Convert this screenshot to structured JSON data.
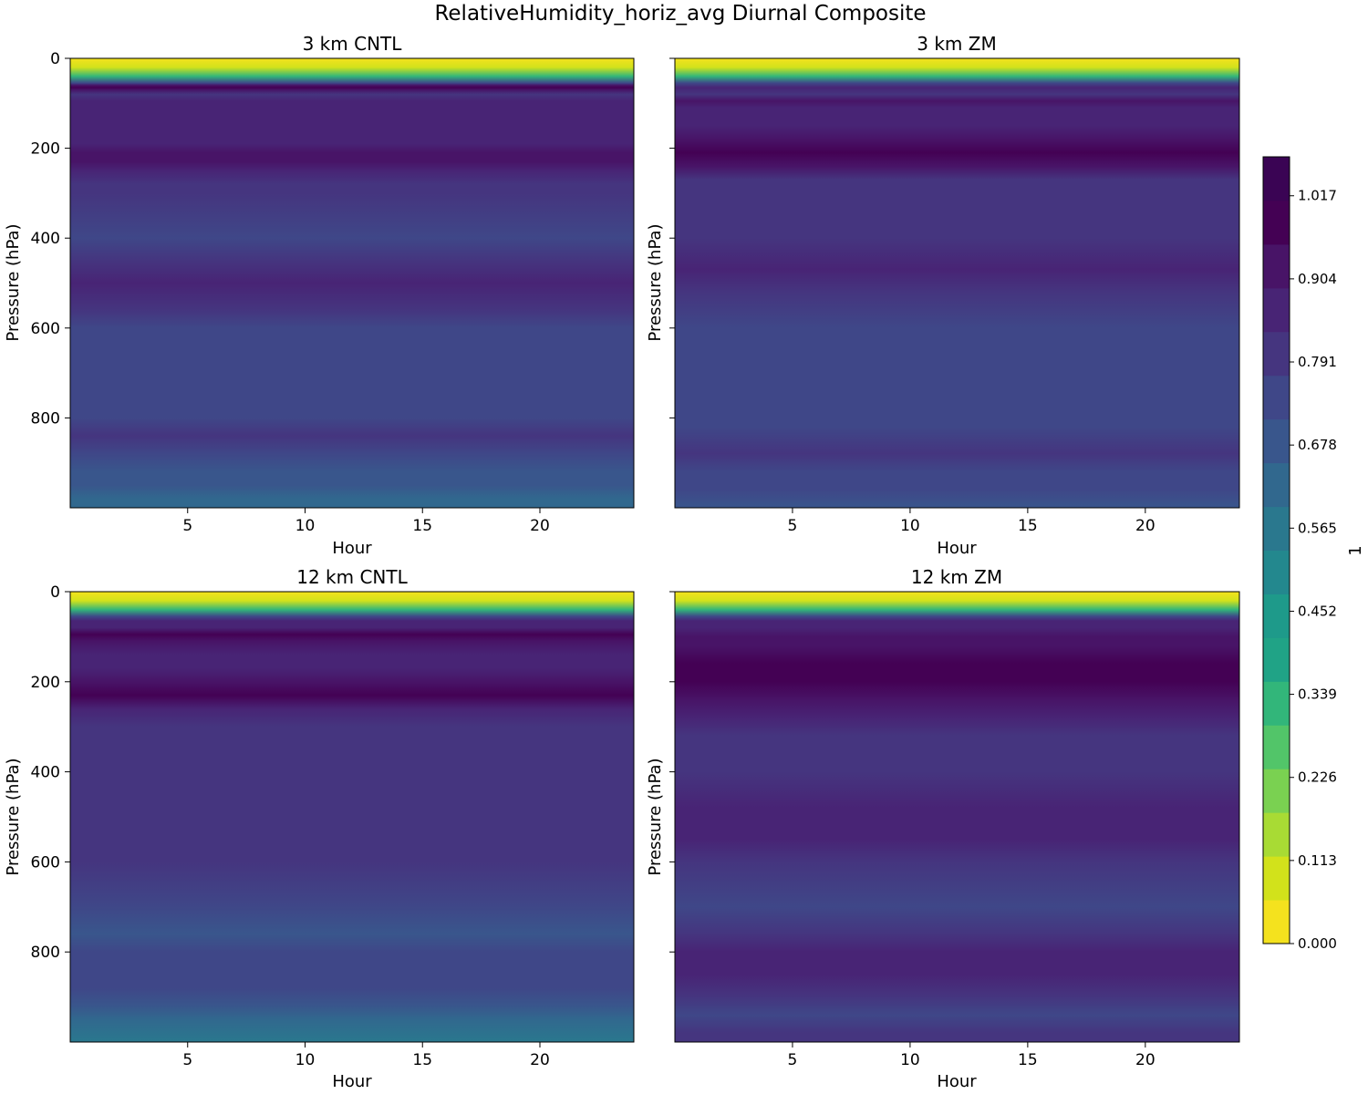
{
  "chart_data": {
    "type": "filled-contour",
    "title": "RelativeHumidity_horiz_avg Diurnal Composite",
    "colormap": "viridis_r",
    "colorbar": {
      "label": "1",
      "range": [
        0,
        1.07
      ],
      "levels": 19,
      "tick_values": [
        0.0,
        0.113,
        0.226,
        0.339,
        0.452,
        0.565,
        0.678,
        0.791,
        0.904,
        1.017
      ],
      "tick_labels": [
        "0.000",
        "0.113",
        "0.226",
        "0.339",
        "0.452",
        "0.565",
        "0.678",
        "0.791",
        "0.904",
        "1.017"
      ],
      "colors": [
        "#f4e21e",
        "#d2e21b",
        "#a8db34",
        "#7ad151",
        "#52c569",
        "#32b67a",
        "#20a386",
        "#1e9a8a",
        "#23888e",
        "#2a788e",
        "#31688e",
        "#39568c",
        "#3f4788",
        "#45357f",
        "#482475",
        "#481467",
        "#440154",
        "#3a0454"
      ]
    },
    "panels": [
      {
        "title": "3 km CNTL",
        "xlabel": "Hour",
        "ylabel": "Pressure (hPa)",
        "xlim": [
          0,
          24
        ],
        "ylim": [
          1000,
          0
        ],
        "xticks": [
          "5",
          "10",
          "15",
          "20"
        ],
        "yticks": [
          "0",
          "200",
          "400",
          "600",
          "800"
        ],
        "rh_profile": [
          [
            0,
            0.0
          ],
          [
            20,
            0.1
          ],
          [
            40,
            0.35
          ],
          [
            55,
            0.75
          ],
          [
            60,
            0.94
          ],
          [
            65,
            0.99
          ],
          [
            70,
            0.9
          ],
          [
            80,
            0.82
          ],
          [
            95,
            0.88
          ],
          [
            110,
            0.84
          ],
          [
            140,
            0.86
          ],
          [
            160,
            0.84
          ],
          [
            190,
            0.86
          ],
          [
            210,
            0.93
          ],
          [
            230,
            0.94
          ],
          [
            250,
            0.87
          ],
          [
            280,
            0.82
          ],
          [
            300,
            0.8
          ],
          [
            400,
            0.77
          ],
          [
            450,
            0.83
          ],
          [
            500,
            0.84
          ],
          [
            560,
            0.81
          ],
          [
            600,
            0.77
          ],
          [
            700,
            0.74
          ],
          [
            800,
            0.76
          ],
          [
            840,
            0.82
          ],
          [
            880,
            0.77
          ],
          [
            920,
            0.7
          ],
          [
            950,
            0.66
          ],
          [
            980,
            0.62
          ],
          [
            1000,
            0.6
          ]
        ]
      },
      {
        "title": "3 km ZM",
        "xlabel": "Hour",
        "ylabel": "Pressure (hPa)",
        "xlim": [
          0,
          24
        ],
        "ylim": [
          1000,
          0
        ],
        "xticks": [
          "5",
          "10",
          "15",
          "20"
        ],
        "yticks": [
          "0",
          "200",
          "400",
          "600",
          "800"
        ],
        "rh_profile": [
          [
            0,
            0.0
          ],
          [
            20,
            0.1
          ],
          [
            40,
            0.35
          ],
          [
            55,
            0.75
          ],
          [
            65,
            0.84
          ],
          [
            80,
            0.82
          ],
          [
            95,
            0.92
          ],
          [
            110,
            0.87
          ],
          [
            150,
            0.88
          ],
          [
            180,
            0.93
          ],
          [
            210,
            0.97
          ],
          [
            240,
            0.91
          ],
          [
            270,
            0.83
          ],
          [
            300,
            0.83
          ],
          [
            400,
            0.8
          ],
          [
            470,
            0.84
          ],
          [
            520,
            0.82
          ],
          [
            600,
            0.77
          ],
          [
            700,
            0.76
          ],
          [
            780,
            0.73
          ],
          [
            820,
            0.77
          ],
          [
            880,
            0.82
          ],
          [
            920,
            0.76
          ],
          [
            960,
            0.72
          ],
          [
            1000,
            0.7
          ]
        ]
      },
      {
        "title": "12 km CNTL",
        "xlabel": "Hour",
        "ylabel": "Pressure (hPa)",
        "xlim": [
          0,
          24
        ],
        "ylim": [
          1000,
          0
        ],
        "xticks": [
          "5",
          "10",
          "15",
          "20"
        ],
        "yticks": [
          "0",
          "200",
          "400",
          "600",
          "800"
        ],
        "rh_profile": [
          [
            0,
            0.0
          ],
          [
            20,
            0.1
          ],
          [
            40,
            0.35
          ],
          [
            55,
            0.75
          ],
          [
            65,
            0.84
          ],
          [
            80,
            0.85
          ],
          [
            95,
            0.97
          ],
          [
            110,
            0.92
          ],
          [
            140,
            0.88
          ],
          [
            170,
            0.86
          ],
          [
            200,
            0.92
          ],
          [
            230,
            0.96
          ],
          [
            260,
            0.87
          ],
          [
            300,
            0.82
          ],
          [
            400,
            0.78
          ],
          [
            470,
            0.83
          ],
          [
            550,
            0.82
          ],
          [
            600,
            0.78
          ],
          [
            700,
            0.74
          ],
          [
            760,
            0.7
          ],
          [
            800,
            0.74
          ],
          [
            880,
            0.75
          ],
          [
            920,
            0.68
          ],
          [
            950,
            0.63
          ],
          [
            1000,
            0.58
          ]
        ]
      },
      {
        "title": "12 km ZM",
        "xlabel": "Hour",
        "ylabel": "Pressure (hPa)",
        "xlim": [
          0,
          24
        ],
        "ylim": [
          1000,
          0
        ],
        "xticks": [
          "5",
          "10",
          "15",
          "20"
        ],
        "yticks": [
          "0",
          "200",
          "400",
          "600",
          "800"
        ],
        "rh_profile": [
          [
            0,
            0.0
          ],
          [
            20,
            0.1
          ],
          [
            40,
            0.35
          ],
          [
            55,
            0.75
          ],
          [
            65,
            0.84
          ],
          [
            80,
            0.86
          ],
          [
            100,
            0.94
          ],
          [
            120,
            0.9
          ],
          [
            160,
            0.97
          ],
          [
            200,
            0.99
          ],
          [
            240,
            0.92
          ],
          [
            280,
            0.84
          ],
          [
            320,
            0.82
          ],
          [
            400,
            0.8
          ],
          [
            480,
            0.88
          ],
          [
            550,
            0.86
          ],
          [
            600,
            0.8
          ],
          [
            700,
            0.77
          ],
          [
            760,
            0.8
          ],
          [
            800,
            0.86
          ],
          [
            850,
            0.89
          ],
          [
            900,
            0.82
          ],
          [
            940,
            0.77
          ],
          [
            980,
            0.82
          ],
          [
            1000,
            0.79
          ]
        ]
      }
    ]
  }
}
